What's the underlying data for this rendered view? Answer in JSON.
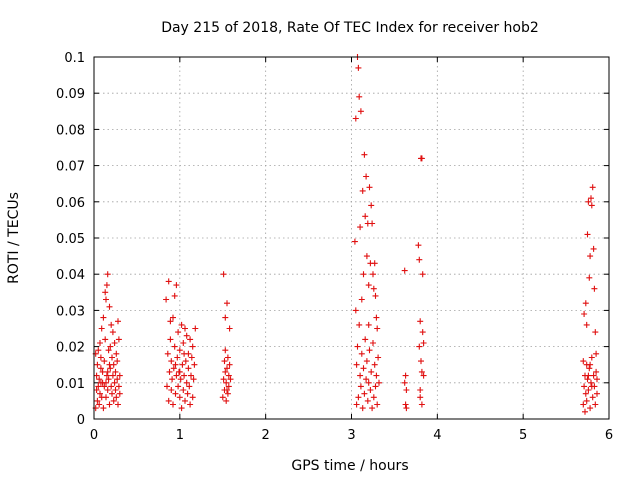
{
  "chart_data": {
    "type": "scatter",
    "title": "Day 215 of 2018, Rate Of TEC Index for receiver hob2",
    "xlabel": "GPS time / hours",
    "ylabel": "ROTI / TECUs",
    "xlim": [
      0,
      6
    ],
    "ylim": [
      0,
      0.1
    ],
    "grid": true,
    "marker": "+",
    "color": "#e01010",
    "x_ticks": [
      0,
      1,
      2,
      3,
      4,
      5,
      6
    ],
    "x_tick_labels": [
      "0",
      "1",
      "2",
      "3",
      "4",
      "5",
      "6"
    ],
    "y_ticks": [
      0,
      0.01,
      0.02,
      0.03,
      0.04,
      0.05,
      0.06,
      0.07,
      0.08,
      0.09,
      0.1
    ],
    "y_tick_labels": [
      "0",
      "0.01",
      "0.02",
      "0.03",
      "0.04",
      "0.05",
      "0.06",
      "0.07",
      "0.08",
      "0.09",
      "0.1"
    ],
    "series": [
      {
        "name": "hob2",
        "points": [
          [
            0.02,
            0.003
          ],
          [
            0.02,
            0.018
          ],
          [
            0.03,
            0.008
          ],
          [
            0.03,
            0.012
          ],
          [
            0.04,
            0.005
          ],
          [
            0.04,
            0.015
          ],
          [
            0.05,
            0.019
          ],
          [
            0.05,
            0.009
          ],
          [
            0.06,
            0.004
          ],
          [
            0.06,
            0.011
          ],
          [
            0.07,
            0.021
          ],
          [
            0.07,
            0.007
          ],
          [
            0.08,
            0.014
          ],
          [
            0.08,
            0.017
          ],
          [
            0.09,
            0.006
          ],
          [
            0.09,
            0.025
          ],
          [
            0.1,
            0.01
          ],
          [
            0.1,
            0.013
          ],
          [
            0.11,
            0.028
          ],
          [
            0.11,
            0.003
          ],
          [
            0.12,
            0.009
          ],
          [
            0.12,
            0.016
          ],
          [
            0.13,
            0.022
          ],
          [
            0.13,
            0.035
          ],
          [
            0.14,
            0.033
          ],
          [
            0.14,
            0.006
          ],
          [
            0.15,
            0.012
          ],
          [
            0.15,
            0.037
          ],
          [
            0.16,
            0.04
          ],
          [
            0.16,
            0.008
          ],
          [
            0.17,
            0.011
          ],
          [
            0.17,
            0.019
          ],
          [
            0.18,
            0.031
          ],
          [
            0.18,
            0.004
          ],
          [
            0.19,
            0.014
          ],
          [
            0.19,
            0.02
          ],
          [
            0.2,
            0.026
          ],
          [
            0.2,
            0.009
          ],
          [
            0.21,
            0.007
          ],
          [
            0.21,
            0.017
          ],
          [
            0.22,
            0.012
          ],
          [
            0.22,
            0.024
          ],
          [
            0.23,
            0.005
          ],
          [
            0.23,
            0.015
          ],
          [
            0.24,
            0.01
          ],
          [
            0.24,
            0.021
          ],
          [
            0.25,
            0.008
          ],
          [
            0.25,
            0.013
          ],
          [
            0.26,
            0.018
          ],
          [
            0.26,
            0.006
          ],
          [
            0.27,
            0.011
          ],
          [
            0.27,
            0.016
          ],
          [
            0.28,
            0.027
          ],
          [
            0.28,
            0.004
          ],
          [
            0.29,
            0.009
          ],
          [
            0.29,
            0.022
          ],
          [
            0.3,
            0.012
          ],
          [
            0.3,
            0.007
          ],
          [
            0.14,
            0.01
          ],
          [
            0.16,
            0.013
          ],
          [
            0.18,
            0.015
          ],
          [
            0.08,
            0.01
          ],
          [
            0.84,
            0.033
          ],
          [
            0.85,
            0.009
          ],
          [
            0.86,
            0.018
          ],
          [
            0.87,
            0.038
          ],
          [
            0.87,
            0.005
          ],
          [
            0.88,
            0.013
          ],
          [
            0.89,
            0.022
          ],
          [
            0.89,
            0.027
          ],
          [
            0.9,
            0.008
          ],
          [
            0.9,
            0.016
          ],
          [
            0.91,
            0.011
          ],
          [
            0.92,
            0.028
          ],
          [
            0.92,
            0.004
          ],
          [
            0.93,
            0.014
          ],
          [
            0.94,
            0.02
          ],
          [
            0.94,
            0.034
          ],
          [
            0.95,
            0.007
          ],
          [
            0.96,
            0.012
          ],
          [
            0.96,
            0.037
          ],
          [
            0.97,
            0.017
          ],
          [
            0.98,
            0.024
          ],
          [
            0.98,
            0.009
          ],
          [
            0.99,
            0.013
          ],
          [
            1.0,
            0.006
          ],
          [
            1.0,
            0.019
          ],
          [
            1.01,
            0.011
          ],
          [
            1.02,
            0.026
          ],
          [
            1.02,
            0.003
          ],
          [
            1.03,
            0.015
          ],
          [
            1.04,
            0.008
          ],
          [
            1.04,
            0.021
          ],
          [
            1.05,
            0.012
          ],
          [
            1.06,
            0.025
          ],
          [
            1.06,
            0.005
          ],
          [
            1.07,
            0.016
          ],
          [
            1.08,
            0.01
          ],
          [
            1.08,
            0.023
          ],
          [
            1.09,
            0.007
          ],
          [
            1.1,
            0.014
          ],
          [
            1.1,
            0.018
          ],
          [
            1.11,
            0.009
          ],
          [
            1.12,
            0.022
          ],
          [
            1.12,
            0.004
          ],
          [
            1.13,
            0.012
          ],
          [
            1.14,
            0.017
          ],
          [
            1.15,
            0.006
          ],
          [
            1.15,
            0.02
          ],
          [
            1.16,
            0.011
          ],
          [
            1.17,
            0.015
          ],
          [
            1.18,
            0.025
          ],
          [
            1.0,
            0.013
          ],
          [
            1.05,
            0.018
          ],
          [
            0.95,
            0.015
          ],
          [
            1.5,
            0.006
          ],
          [
            1.51,
            0.011
          ],
          [
            1.51,
            0.04
          ],
          [
            1.52,
            0.008
          ],
          [
            1.52,
            0.016
          ],
          [
            1.53,
            0.013
          ],
          [
            1.53,
            0.028
          ],
          [
            1.54,
            0.005
          ],
          [
            1.54,
            0.01
          ],
          [
            1.55,
            0.014
          ],
          [
            1.55,
            0.032
          ],
          [
            1.56,
            0.007
          ],
          [
            1.56,
            0.017
          ],
          [
            1.57,
            0.012
          ],
          [
            1.57,
            0.009
          ],
          [
            1.58,
            0.015
          ],
          [
            1.58,
            0.025
          ],
          [
            1.59,
            0.011
          ],
          [
            1.53,
            0.019
          ],
          [
            1.55,
            0.008
          ],
          [
            3.04,
            0.049
          ],
          [
            3.05,
            0.083
          ],
          [
            3.05,
            0.03
          ],
          [
            3.06,
            0.004
          ],
          [
            3.06,
            0.015
          ],
          [
            3.07,
            0.1
          ],
          [
            3.07,
            0.02
          ],
          [
            3.08,
            0.097
          ],
          [
            3.08,
            0.006
          ],
          [
            3.09,
            0.089
          ],
          [
            3.09,
            0.026
          ],
          [
            3.1,
            0.012
          ],
          [
            3.1,
            0.053
          ],
          [
            3.11,
            0.085
          ],
          [
            3.11,
            0.009
          ],
          [
            3.12,
            0.033
          ],
          [
            3.12,
            0.018
          ],
          [
            3.13,
            0.063
          ],
          [
            3.13,
            0.003
          ],
          [
            3.14,
            0.04
          ],
          [
            3.14,
            0.014
          ],
          [
            3.15,
            0.073
          ],
          [
            3.15,
            0.007
          ],
          [
            3.16,
            0.056
          ],
          [
            3.16,
            0.022
          ],
          [
            3.17,
            0.067
          ],
          [
            3.17,
            0.011
          ],
          [
            3.18,
            0.045
          ],
          [
            3.18,
            0.016
          ],
          [
            3.19,
            0.054
          ],
          [
            3.19,
            0.005
          ],
          [
            3.2,
            0.037
          ],
          [
            3.2,
            0.01
          ],
          [
            3.21,
            0.064
          ],
          [
            3.21,
            0.019
          ],
          [
            3.22,
            0.043
          ],
          [
            3.22,
            0.008
          ],
          [
            3.23,
            0.059
          ],
          [
            3.23,
            0.013
          ],
          [
            3.24,
            0.054
          ],
          [
            3.24,
            0.003
          ],
          [
            3.25,
            0.04
          ],
          [
            3.25,
            0.021
          ],
          [
            3.26,
            0.036
          ],
          [
            3.26,
            0.006
          ],
          [
            3.27,
            0.043
          ],
          [
            3.27,
            0.015
          ],
          [
            3.28,
            0.034
          ],
          [
            3.28,
            0.009
          ],
          [
            3.29,
            0.028
          ],
          [
            3.29,
            0.012
          ],
          [
            3.3,
            0.025
          ],
          [
            3.3,
            0.004
          ],
          [
            3.31,
            0.017
          ],
          [
            3.32,
            0.01
          ],
          [
            3.2,
            0.026
          ],
          [
            3.62,
            0.041
          ],
          [
            3.63,
            0.012
          ],
          [
            3.63,
            0.004
          ],
          [
            3.64,
            0.008
          ],
          [
            3.64,
            0.003
          ],
          [
            3.62,
            0.01
          ],
          [
            3.78,
            0.048
          ],
          [
            3.79,
            0.044
          ],
          [
            3.79,
            0.02
          ],
          [
            3.8,
            0.027
          ],
          [
            3.8,
            0.008
          ],
          [
            3.81,
            0.072
          ],
          [
            3.81,
            0.016
          ],
          [
            3.82,
            0.072
          ],
          [
            3.82,
            0.004
          ],
          [
            3.83,
            0.04
          ],
          [
            3.83,
            0.024
          ],
          [
            3.84,
            0.012
          ],
          [
            3.84,
            0.021
          ],
          [
            3.8,
            0.006
          ],
          [
            3.82,
            0.013
          ],
          [
            5.7,
            0.016
          ],
          [
            5.7,
            0.004
          ],
          [
            5.71,
            0.009
          ],
          [
            5.71,
            0.029
          ],
          [
            5.72,
            0.012
          ],
          [
            5.72,
            0.002
          ],
          [
            5.73,
            0.007
          ],
          [
            5.73,
            0.032
          ],
          [
            5.74,
            0.015
          ],
          [
            5.74,
            0.005
          ],
          [
            5.75,
            0.051
          ],
          [
            5.75,
            0.011
          ],
          [
            5.76,
            0.06
          ],
          [
            5.76,
            0.008
          ],
          [
            5.77,
            0.039
          ],
          [
            5.77,
            0.014
          ],
          [
            5.78,
            0.045
          ],
          [
            5.78,
            0.003
          ],
          [
            5.79,
            0.061
          ],
          [
            5.79,
            0.01
          ],
          [
            5.8,
            0.059
          ],
          [
            5.8,
            0.017
          ],
          [
            5.81,
            0.064
          ],
          [
            5.81,
            0.006
          ],
          [
            5.82,
            0.047
          ],
          [
            5.82,
            0.012
          ],
          [
            5.83,
            0.036
          ],
          [
            5.83,
            0.009
          ],
          [
            5.84,
            0.024
          ],
          [
            5.84,
            0.004
          ],
          [
            5.85,
            0.013
          ],
          [
            5.85,
            0.018
          ],
          [
            5.86,
            0.007
          ],
          [
            5.86,
            0.011
          ],
          [
            5.76,
            0.012
          ],
          [
            5.8,
            0.009
          ],
          [
            5.74,
            0.026
          ],
          [
            5.78,
            0.015
          ]
        ]
      }
    ]
  }
}
